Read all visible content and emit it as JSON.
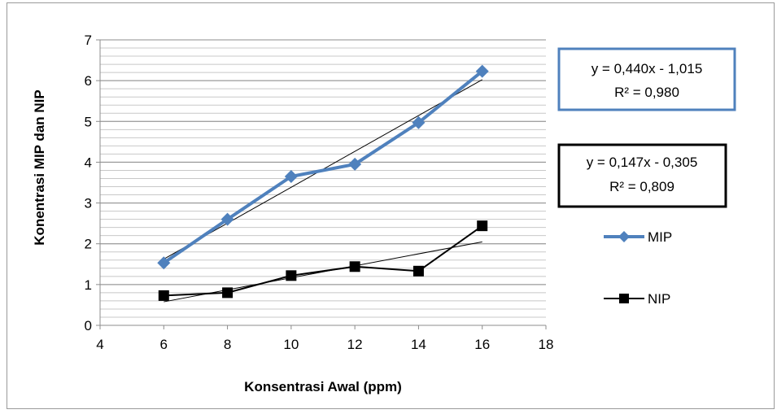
{
  "chart_data": {
    "type": "line",
    "xlabel": "Konsentrasi Awal (ppm)",
    "ylabel": "Konentrasi MIP dan NIP",
    "xlim": [
      4,
      18
    ],
    "ylim": [
      0,
      7
    ],
    "x_ticks": [
      4,
      6,
      8,
      10,
      12,
      14,
      16,
      18
    ],
    "y_ticks": [
      0,
      1,
      2,
      3,
      4,
      5,
      6,
      7
    ],
    "x_tick_labels": [
      "4",
      "6",
      "8",
      "10",
      "12",
      "14",
      "16",
      "18"
    ],
    "y_tick_labels": [
      "0",
      "1",
      "2",
      "3",
      "4",
      "5",
      "6",
      "7"
    ],
    "grid": "horizontal major and minor",
    "legend_position": "right",
    "series": [
      {
        "name": "MIP",
        "marker": "diamond",
        "color": "#4f81bd",
        "x": [
          6,
          8,
          10,
          12,
          14,
          16
        ],
        "y": [
          1.53,
          2.6,
          3.65,
          3.95,
          4.97,
          6.23
        ],
        "trendline": {
          "slope": 0.44,
          "intercept": -1.015,
          "color": "#000000"
        }
      },
      {
        "name": "NIP",
        "marker": "square",
        "color": "#000000",
        "x": [
          6,
          8,
          10,
          12,
          14,
          16
        ],
        "y": [
          0.73,
          0.8,
          1.22,
          1.44,
          1.33,
          2.44
        ],
        "trendline": {
          "slope": 0.147,
          "intercept": -0.305,
          "color": "#000000"
        }
      }
    ],
    "annotations": [
      {
        "line1": "y = 0,440x - 1,015",
        "line2": "R² = 0,980",
        "border_color": "#4f81bd"
      },
      {
        "line1": "y = 0,147x - 0,305",
        "line2": "R² = 0,809",
        "border_color": "#000000"
      }
    ]
  }
}
